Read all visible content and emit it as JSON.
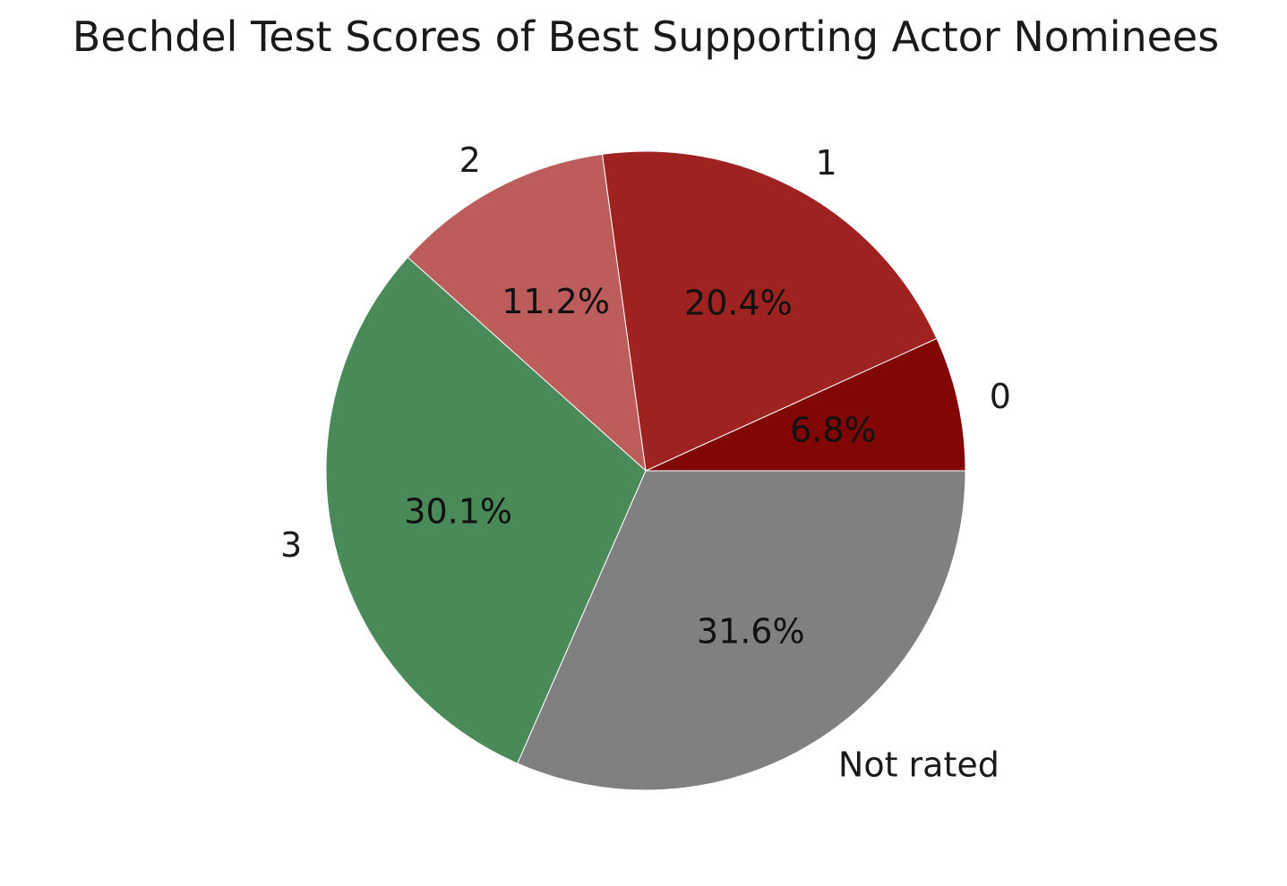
{
  "chart_data": {
    "type": "pie",
    "title": "Bechdel Test Scores of Best Supporting Actor Nominees",
    "slices": [
      {
        "label": "0",
        "value": 6.8,
        "pct_label": "6.8%",
        "color": "#800706"
      },
      {
        "label": "1",
        "value": 20.4,
        "pct_label": "20.4%",
        "color": "#9e2220"
      },
      {
        "label": "2",
        "value": 11.2,
        "pct_label": "11.2%",
        "color": "#bd5d5b"
      },
      {
        "label": "3",
        "value": 30.1,
        "pct_label": "30.1%",
        "color": "#4a8a59"
      },
      {
        "label": "Not rated",
        "value": 31.6,
        "pct_label": "31.6%",
        "color": "#808080"
      }
    ],
    "start_angle_deg": 0,
    "direction": "counterclockwise",
    "legend": "none"
  }
}
